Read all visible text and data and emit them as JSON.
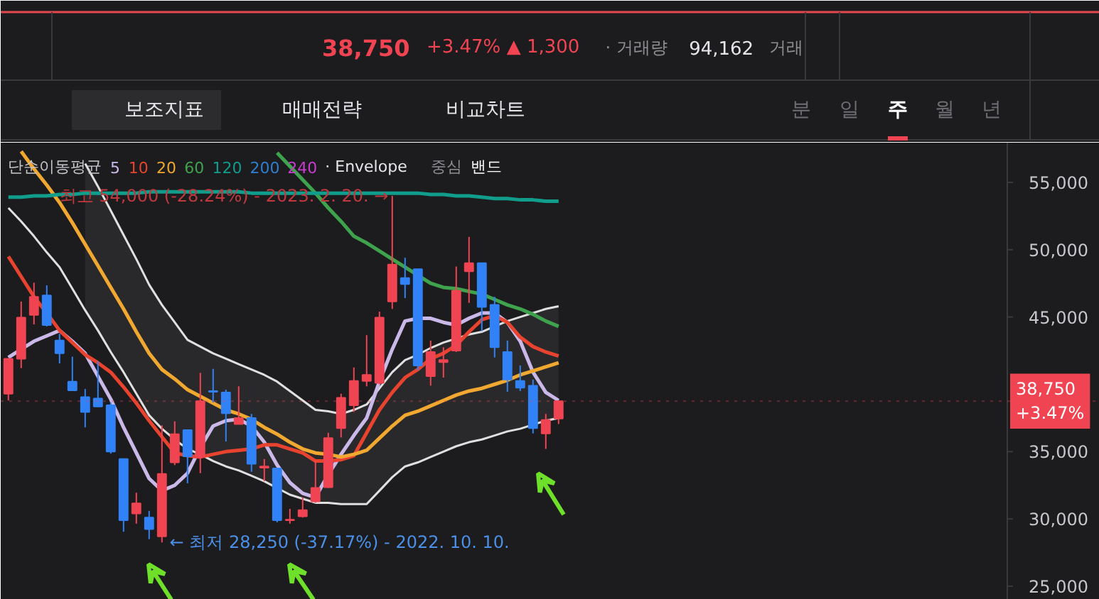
{
  "chart_data": {
    "type": "candlestick",
    "categories": [
      null,
      null,
      null,
      null,
      null,
      null,
      null,
      null,
      null,
      null,
      null,
      null,
      null,
      null,
      null,
      null,
      null,
      null,
      null,
      null,
      null,
      null,
      null,
      null,
      null,
      null,
      null,
      null,
      null,
      null,
      null,
      null,
      null,
      null,
      null,
      null,
      null,
      null,
      null,
      null,
      null,
      null,
      null,
      null
    ],
    "ohlc": [
      [
        39300,
        41900,
        38800,
        41900
      ],
      [
        41900,
        46150,
        41200,
        44950
      ],
      [
        45150,
        47550,
        44450,
        46500
      ],
      [
        46600,
        47350,
        44300,
        44400
      ],
      [
        43250,
        43750,
        41550,
        42300
      ],
      [
        40200,
        42050,
        39500,
        39550
      ],
      [
        39050,
        39650,
        36800,
        37950
      ],
      [
        38950,
        41700,
        38300,
        38350
      ],
      [
        38450,
        38650,
        34850,
        35000
      ],
      [
        34450,
        34450,
        29050,
        29900
      ],
      [
        30400,
        31950,
        29650,
        31150
      ],
      [
        30100,
        30600,
        28500,
        29250
      ],
      [
        28700,
        36950,
        28250,
        33350
      ],
      [
        34200,
        37250,
        34000,
        36300
      ],
      [
        36600,
        36600,
        32650,
        34650
      ],
      [
        34600,
        40850,
        33400,
        38750
      ],
      [
        39500,
        41150,
        38650,
        39450
      ],
      [
        39400,
        39600,
        35750,
        37850
      ],
      [
        37050,
        39850,
        37050,
        37500
      ],
      [
        37500,
        37800,
        33500,
        34100
      ],
      [
        33800,
        34450,
        32800,
        33900
      ],
      [
        33750,
        33750,
        29750,
        29900
      ],
      [
        29900,
        30750,
        29650,
        29950
      ],
      [
        30200,
        31600,
        30100,
        30650
      ],
      [
        31300,
        34350,
        31200,
        32300
      ],
      [
        32350,
        36400,
        32300,
        36000
      ],
      [
        36750,
        39300,
        36050,
        39000
      ],
      [
        38450,
        41250,
        37950,
        40250
      ],
      [
        40250,
        43650,
        39850,
        40700
      ],
      [
        40100,
        45400,
        40000,
        44950
      ],
      [
        46150,
        54000,
        45600,
        48900
      ],
      [
        47900,
        49400,
        46400,
        47450
      ],
      [
        48550,
        48550,
        41050,
        41400
      ],
      [
        40600,
        43250,
        39900,
        42400
      ],
      [
        41650,
        42750,
        40500,
        41800
      ],
      [
        42500,
        48750,
        42400,
        46950
      ],
      [
        48400,
        50950,
        46050,
        49000
      ],
      [
        49000,
        49000,
        43950,
        45750
      ],
      [
        45900,
        46500,
        42000,
        42750
      ],
      [
        42400,
        43250,
        39450,
        40350
      ],
      [
        40250,
        41400,
        39500,
        39750
      ],
      [
        39900,
        40350,
        36350,
        36750
      ],
      [
        36350,
        37800,
        35200,
        37350
      ],
      [
        37450,
        38750,
        37050,
        38750
      ]
    ],
    "colors": [
      "#f04452",
      "#f04452",
      "#f04452",
      "#3182f6",
      "#3182f6",
      "#3182f6",
      "#3182f6",
      "#3182f6",
      "#3182f6",
      "#3182f6",
      "#f04452",
      "#3182f6",
      "#f04452",
      "#f04452",
      "#3182f6",
      "#f04452",
      "#3182f6",
      "#3182f6",
      "#f04452",
      "#3182f6",
      "#f04452",
      "#3182f6",
      "#f04452",
      "#f04452",
      "#f04452",
      "#f04452",
      "#f04452",
      "#f04452",
      "#f04452",
      "#f04452",
      "#f04452",
      "#3182f6",
      "#3182f6",
      "#f04452",
      "#f04452",
      "#f04452",
      "#f04452",
      "#3182f6",
      "#3182f6",
      "#3182f6",
      "#3182f6",
      "#3182f6",
      "#f04452",
      "#f04452"
    ],
    "series": [
      {
        "type": "line",
        "color": "#e0e0e0",
        "values": [
          53100,
          52100,
          51000,
          49800,
          48700,
          47100,
          45500,
          44000,
          42400,
          40900,
          39300,
          37700,
          36700,
          35900,
          35200,
          34800,
          34300,
          33900,
          33600,
          33200,
          32800,
          32300,
          31800,
          31500,
          31200,
          31200,
          31100,
          31100,
          31100,
          32100,
          33100,
          33900,
          34200,
          34600,
          35000,
          35400,
          35700,
          35900,
          36200,
          36500,
          36700,
          37000,
          37300,
          37500
        ]
      },
      {
        "type": "line",
        "color": "#e0e0e0",
        "values": [
          null,
          null,
          null,
          null,
          null,
          null,
          56400,
          54700,
          52900,
          51100,
          49300,
          47400,
          45900,
          44600,
          43300,
          42800,
          42300,
          41900,
          41500,
          41100,
          40700,
          40200,
          39500,
          38800,
          38100,
          38000,
          37800,
          38100,
          38500,
          39700,
          40900,
          41800,
          42200,
          42700,
          43100,
          43400,
          43700,
          43900,
          44300,
          44700,
          45000,
          45300,
          45600,
          45800
        ]
      },
      {
        "name": "5",
        "type": "line",
        "color": "#c9b8e8",
        "values": [
          42000,
          42600,
          43200,
          43600,
          44000,
          43200,
          42300,
          40600,
          38900,
          36800,
          34900,
          33000,
          32100,
          32500,
          33400,
          35300,
          36900,
          37300,
          37400,
          36900,
          35700,
          34000,
          32700,
          31900,
          31600,
          33300,
          34800,
          36200,
          37500,
          40200,
          42600,
          44700,
          44900,
          44900,
          44600,
          44400,
          44900,
          45300,
          45300,
          44600,
          43200,
          40900,
          39400,
          38800
        ]
      },
      {
        "name": "10",
        "type": "line",
        "color": "#e8432e",
        "values": [
          49500,
          48000,
          46500,
          45300,
          44000,
          43100,
          42200,
          41600,
          40900,
          39800,
          38600,
          37300,
          36100,
          34900,
          34700,
          34600,
          34800,
          35000,
          35100,
          35200,
          35500,
          35500,
          35200,
          34900,
          34300,
          34300,
          34400,
          34700,
          36400,
          38100,
          39400,
          40500,
          41100,
          41900,
          42300,
          42900,
          43900,
          44800,
          45100,
          44600,
          43500,
          42800,
          42400,
          42100
        ]
      },
      {
        "name": "20",
        "type": "line",
        "color": "#f0a830",
        "values": [
          null,
          57300,
          56000,
          54800,
          53500,
          52000,
          50400,
          48800,
          47200,
          45600,
          43900,
          42300,
          41100,
          40400,
          39600,
          39100,
          38600,
          38100,
          37800,
          37400,
          36800,
          36300,
          35700,
          35200,
          34900,
          34800,
          34600,
          34800,
          35100,
          36000,
          36900,
          37700,
          38000,
          38400,
          38800,
          39200,
          39500,
          39700,
          40000,
          40300,
          40700,
          41000,
          41300,
          41600
        ],
        "upper": [
          null,
          null,
          null,
          null,
          null,
          null,
          56400,
          54700,
          52900,
          51100,
          49300,
          47400,
          45900,
          44600,
          43300,
          42800,
          42300,
          41900,
          41500,
          41100,
          40700,
          40200,
          39500,
          38800,
          38100,
          38000,
          37800,
          38100,
          38500,
          39700,
          40900,
          41800,
          42200,
          42700,
          43100,
          43400,
          43700,
          43900,
          44300,
          44700,
          45000,
          45300,
          45600,
          45800
        ],
        "lower": [
          null,
          null,
          null,
          null,
          null,
          null,
          45500,
          44000,
          42400,
          40900,
          39300,
          37700,
          36700,
          35900,
          35200,
          34800,
          34300,
          33900,
          33600,
          33200,
          32800,
          32300,
          31800,
          31500,
          31200,
          31200,
          31100,
          31100,
          31100,
          32100,
          33100,
          33900,
          34200,
          34600,
          35000,
          35400,
          35700,
          35900,
          36200,
          36500,
          36700,
          37000,
          37300,
          37500
        ]
      },
      {
        "name": "60",
        "type": "line",
        "color": "#3fa34d",
        "values": [
          null,
          null,
          null,
          null,
          null,
          null,
          null,
          null,
          null,
          null,
          null,
          null,
          null,
          null,
          null,
          null,
          null,
          null,
          null,
          null,
          null,
          57200,
          56200,
          55200,
          54200,
          53100,
          52100,
          51000,
          50500,
          49900,
          49300,
          48700,
          48100,
          47500,
          47200,
          47100,
          46900,
          46700,
          46300,
          45900,
          45600,
          45200,
          44700,
          44300
        ]
      },
      {
        "name": "120",
        "type": "line",
        "color": "#109d8c",
        "values": [
          53900,
          53900,
          54000,
          54000,
          54100,
          54100,
          54200,
          54200,
          54200,
          54200,
          54200,
          54300,
          54300,
          54300,
          54300,
          54300,
          54300,
          54300,
          54300,
          54200,
          54200,
          54200,
          54200,
          54200,
          54200,
          54200,
          54200,
          54200,
          54200,
          54200,
          54200,
          54200,
          54200,
          54100,
          54100,
          54000,
          54000,
          53900,
          53800,
          53800,
          53700,
          53700,
          53600,
          53600
        ]
      }
    ],
    "legend_title": "단순이동평균",
    "ylim": [
      24000,
      57950
    ],
    "yticks": [
      {
        "value": 25000,
        "label": "25,000"
      },
      {
        "value": 30000,
        "label": "30,000"
      },
      {
        "value": 35000,
        "label": "35,000"
      },
      {
        "value": 45000,
        "label": "45,000"
      },
      {
        "value": 50000,
        "label": "50,000"
      },
      {
        "value": 55000,
        "label": "55,000"
      }
    ],
    "ref_lines": [
      {
        "axis": "y",
        "value": 38750,
        "label": "38,750\n+3.47%",
        "color": "#f04452",
        "line_style": "dotted"
      }
    ],
    "annotations": [
      "38,750",
      "+3.47%",
      "▲ 1,300",
      "· 거래량",
      "94,162",
      "거래",
      "보조지표",
      "매매전략",
      "비교차트",
      "분",
      "일",
      "주",
      "월",
      "년",
      "200",
      "240",
      "· Envelope",
      "중심",
      "밴드",
      "최고 54,000 (-28.24%) - 2023. 2. 20. →",
      "← 최저 28,250 (-37.17%) - 2022. 10. 10."
    ]
  }
}
